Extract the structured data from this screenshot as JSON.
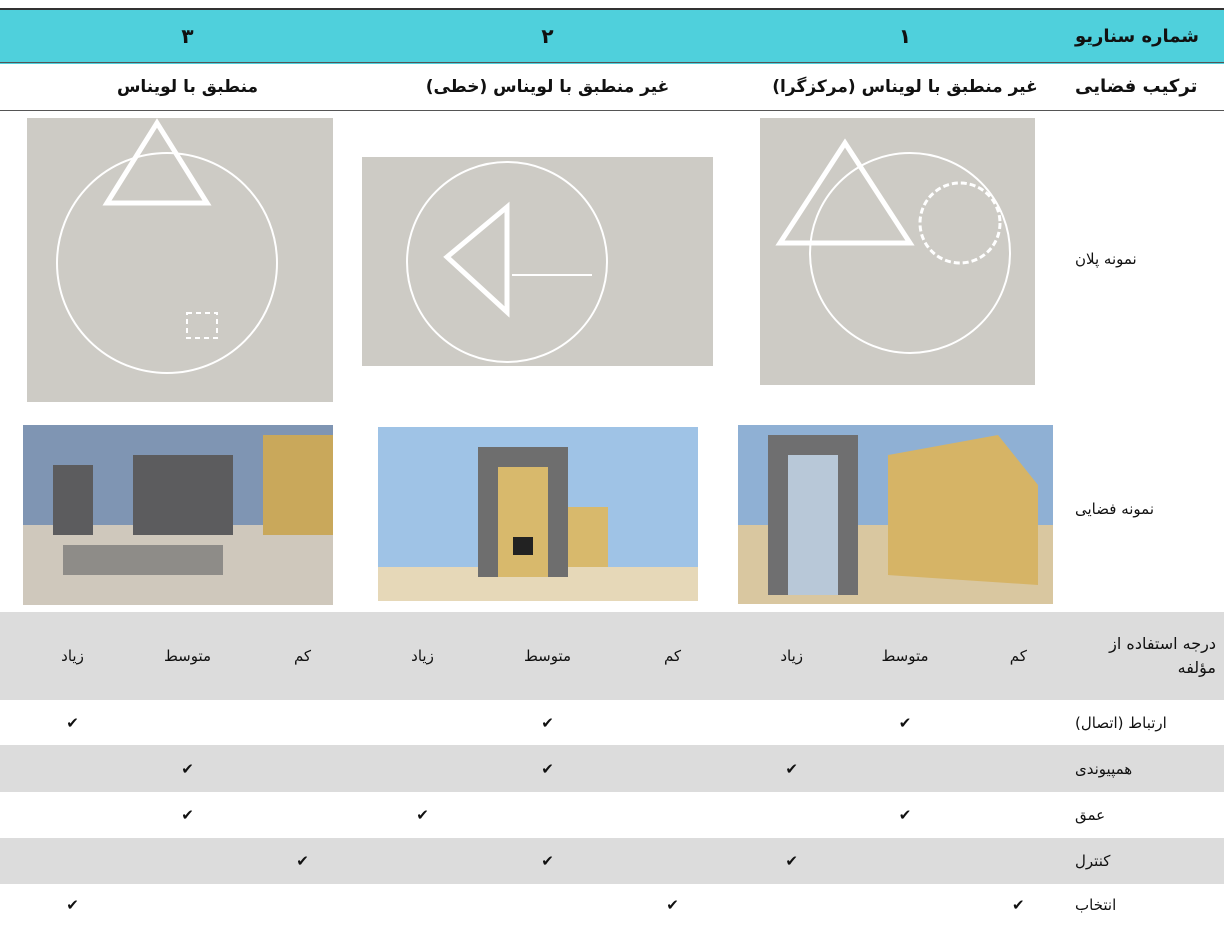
{
  "header": {
    "label": "شماره سناریو",
    "scenarios": [
      "۱",
      "۲",
      "۳"
    ]
  },
  "composition": {
    "label": "ترکیب فضایی",
    "values": [
      "غیر منطبق با لویناس (مرکزگرا)",
      "غیر منطبق با لویناس (خطی)",
      "منطبق با لویناس"
    ]
  },
  "plan_row": {
    "label": "نمونه پلان"
  },
  "spatial_row": {
    "label": "نمونه فضایی"
  },
  "degree": {
    "label": "درجه استفاده از مؤلفه",
    "levels": [
      "کم",
      "متوسط",
      "زیاد"
    ]
  },
  "rows": [
    {
      "label": "ارتباط (اتصال)",
      "cells": [
        null,
        "✔",
        null,
        null,
        "✔",
        null,
        null,
        null,
        "✔"
      ]
    },
    {
      "label": "همپیوندی",
      "cells": [
        null,
        null,
        "✔",
        null,
        "✔",
        null,
        null,
        "✔",
        null
      ]
    },
    {
      "label": "عمق",
      "cells": [
        null,
        "✔",
        null,
        null,
        null,
        "✔",
        null,
        "✔",
        null
      ]
    },
    {
      "label": "کنترل",
      "cells": [
        null,
        null,
        "✔",
        null,
        "✔",
        null,
        "✔",
        null,
        null
      ]
    },
    {
      "label": "انتخاب",
      "cells": [
        "✔",
        null,
        null,
        "✔",
        null,
        null,
        null,
        null,
        "✔"
      ]
    }
  ]
}
